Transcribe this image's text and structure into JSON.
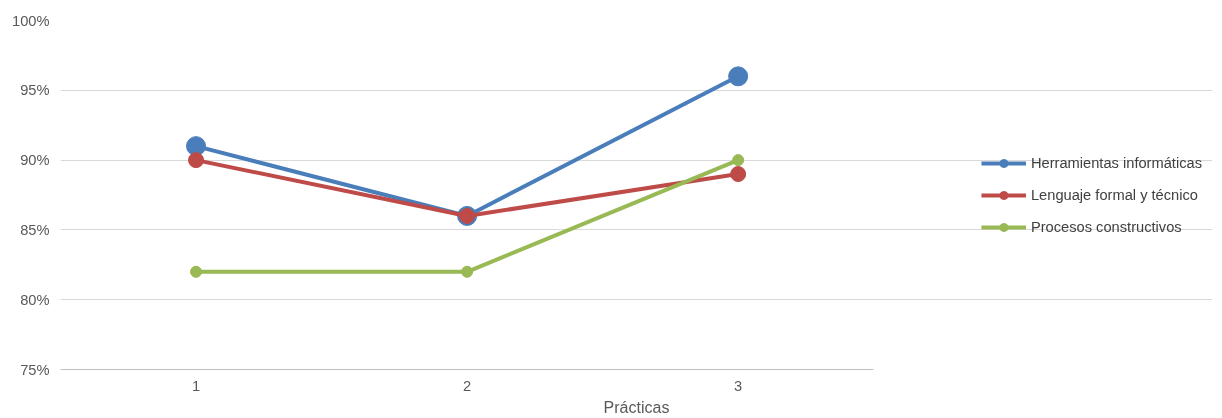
{
  "chart_data": {
    "type": "line",
    "xlabel": "Prácticas",
    "categories": [
      "1",
      "2",
      "3"
    ],
    "series": [
      {
        "name": "Herramientas informáticas",
        "color": "#4a7ebb",
        "values": [
          91,
          86,
          96
        ]
      },
      {
        "name": "Lenguaje formal y técnico",
        "color": "#be4b48",
        "values": [
          90,
          86,
          89
        ]
      },
      {
        "name": "Procesos constructivos",
        "color": "#98b954",
        "values": [
          82,
          82,
          90
        ]
      }
    ],
    "ylim": [
      75,
      100
    ],
    "yticks": [
      {
        "value": 75,
        "label": "75%"
      },
      {
        "value": 80,
        "label": "80%"
      },
      {
        "value": 85,
        "label": "85%"
      },
      {
        "value": 90,
        "label": "90%"
      },
      {
        "value": 95,
        "label": "95%"
      },
      {
        "value": 100,
        "label": "100%"
      }
    ],
    "grid": "y",
    "legend": "right",
    "marker": "circle",
    "line_style": "solid"
  }
}
